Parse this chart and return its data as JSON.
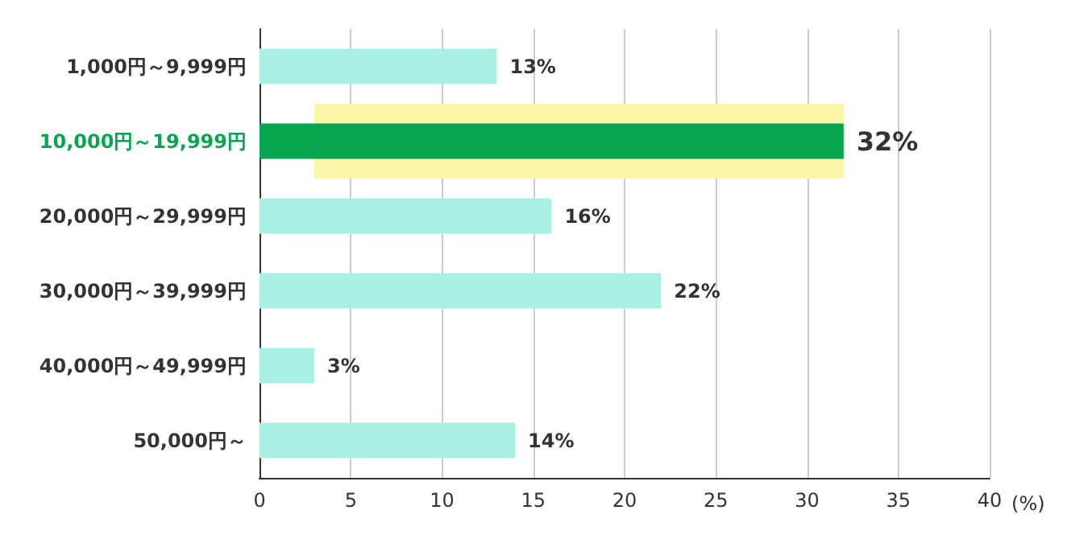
{
  "chart_data": {
    "type": "bar",
    "orientation": "horizontal",
    "categories": [
      "1,000円～9,999円",
      "10,000円～19,999円",
      "20,000円～29,999円",
      "30,000円～39,999円",
      "40,000円～49,999円",
      "50,000円～"
    ],
    "values": [
      13,
      32,
      16,
      22,
      3,
      14
    ],
    "colors": [
      "#a8efe4",
      "#06a550",
      "#a8efe4",
      "#a8efe4",
      "#a8efe4",
      "#a8efe4"
    ],
    "value_labels": [
      "13%",
      "32%",
      "16%",
      "22%",
      "3%",
      "14%"
    ],
    "xlabel": "(%)",
    "xlim": [
      0,
      40
    ],
    "xticks": [
      0,
      5,
      10,
      15,
      20,
      25,
      30,
      35,
      40
    ],
    "grid": "x",
    "bands": [
      {
        "axis": "y",
        "from": "10,000円～19,999円",
        "to": "10,000円～19,999円",
        "color": "#fbf5a8"
      }
    ]
  }
}
